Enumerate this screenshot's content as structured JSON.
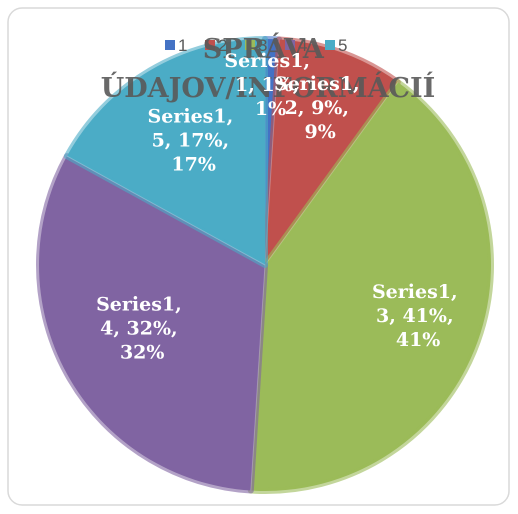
{
  "chart_data": {
    "type": "pie",
    "title": "SPRÁVA ÚDAJOV/INFORMÁCIÍ",
    "categories": [
      "1",
      "2",
      "3",
      "4",
      "5"
    ],
    "values": [
      1,
      9,
      41,
      32,
      17
    ],
    "value_labels": [
      "Series1, 1, 1%, 1%",
      "Series1, 2, 9%, 9%",
      "Series1, 3, 41%, 41%",
      "Series1, 4, 32%, 32%",
      "Series1, 5, 17%, 17%"
    ],
    "colors": [
      "#4472c4",
      "#c0504d",
      "#9bbb59",
      "#8064a2",
      "#4bacc6"
    ],
    "legend": "top"
  }
}
